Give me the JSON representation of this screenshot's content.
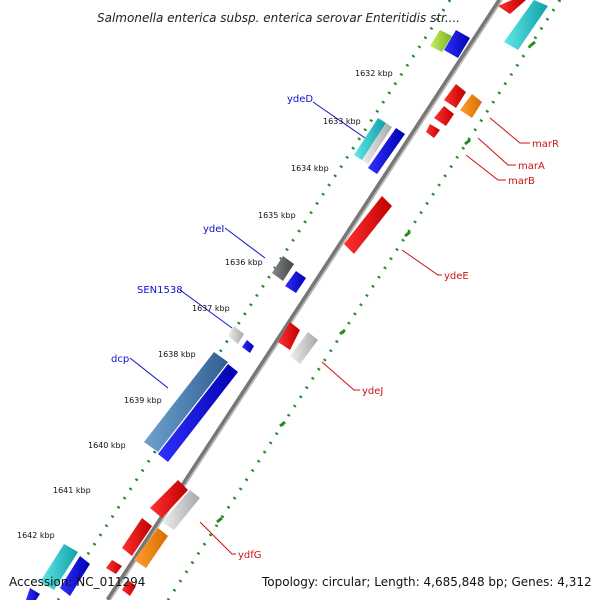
{
  "title": "Salmonella enterica subsp. enterica serovar Enteritidis str....",
  "footer": {
    "accession": "Accession: NC_011294",
    "topology": "Topology: circular; Length: 4,685,848 bp; Genes: 4,312"
  },
  "ticks": [
    "1632 kbp",
    "1633 kbp",
    "1634 kbp",
    "1635 kbp",
    "1636 kbp",
    "1637 kbp",
    "1638 kbp",
    "1639 kbp",
    "1640 kbp",
    "1641 kbp",
    "1642 kbp"
  ],
  "left_labels": [
    "ydeD",
    "ydeI",
    "SEN1538",
    "dcp"
  ],
  "right_labels": [
    "marR",
    "marA",
    "marB",
    "ydeE",
    "ydeJ",
    "ydfG"
  ],
  "colors": {
    "backbone": "#888888",
    "forward_gene": "#0000ee",
    "reverse_gene": "#ee0000",
    "orange_gene": "#ff8c00",
    "cyan_gene": "#20c8c8",
    "grey_gene": "#c8c8c8",
    "steel_gene": "#4682b4",
    "lime_gene": "#9acd32",
    "dotted_track": "#228b22",
    "left_label_color": "#1010c8",
    "right_label_color": "#cc1111"
  }
}
